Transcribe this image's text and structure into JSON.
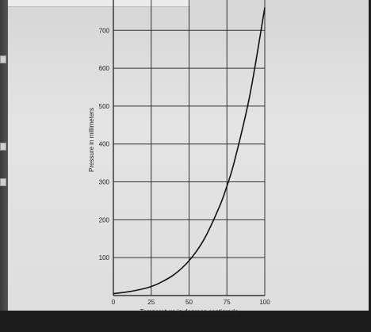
{
  "chart_data": {
    "type": "line",
    "title": "",
    "xlabel": "Temperature in degrees centigrade",
    "ylabel": "Pressure in millimeters",
    "xlim": [
      0,
      100
    ],
    "ylim": [
      0,
      780
    ],
    "x_ticks": [
      0,
      25,
      50,
      75,
      100
    ],
    "y_ticks": [
      100,
      200,
      300,
      400,
      500,
      600,
      700
    ],
    "x_tick_labels": [
      "0",
      "25",
      "50",
      "75",
      "100"
    ],
    "y_tick_labels": [
      "100",
      "200",
      "300",
      "400",
      "500",
      "600",
      "700"
    ],
    "grid": true,
    "series": [
      {
        "x": [
          0,
          10,
          20,
          25,
          30,
          40,
          50,
          60,
          70,
          75,
          80,
          90,
          100
        ],
        "y": [
          5,
          10,
          18,
          24,
          32,
          55,
          92,
          149,
          234,
          289,
          355,
          526,
          760
        ]
      }
    ]
  }
}
